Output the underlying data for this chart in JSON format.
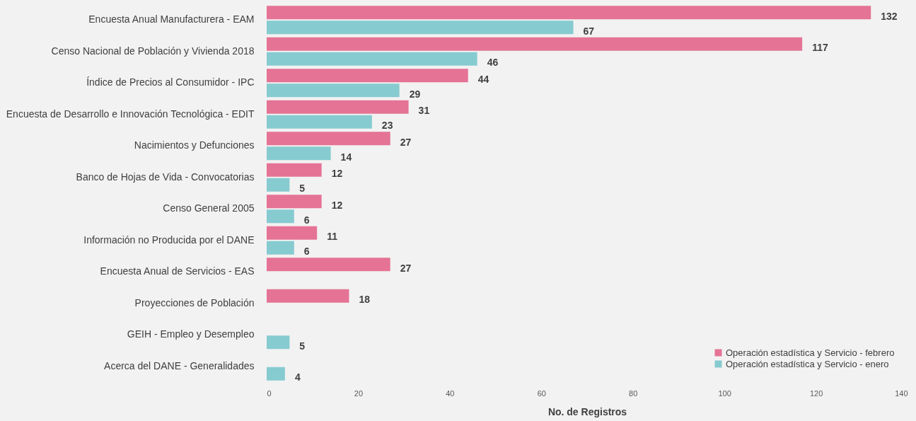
{
  "chart_data": {
    "type": "bar",
    "orientation": "horizontal",
    "xlabel": "No. de Registros",
    "categories": [
      "Encuesta Anual Manufacturera - EAM",
      "Censo Nacional de Población y Vivienda 2018",
      "Índice de Precios al Consumidor - IPC",
      "Encuesta de Desarrollo e Innovación Tecnológica - EDIT",
      "Nacimientos y Defunciones",
      "Banco de Hojas de Vida - Convocatorias",
      "Censo General 2005",
      "Información no Producida por el DANE",
      "Encuesta Anual de Servicios - EAS",
      "Proyecciones de Población",
      "GEIH - Empleo y Desempleo",
      "Acerca del DANE - Generalidades"
    ],
    "series": [
      {
        "name": "Operación estadística y Servicio - febrero",
        "color": "#e57395",
        "values": [
          132,
          117,
          44,
          31,
          27,
          12,
          12,
          11,
          27,
          18,
          null,
          null
        ]
      },
      {
        "name": "Operación estadística y Servicio - enero",
        "color": "#86cbd0",
        "values": [
          67,
          46,
          29,
          23,
          14,
          5,
          6,
          6,
          null,
          null,
          5,
          4
        ]
      }
    ],
    "xlim": [
      0,
      140
    ],
    "xticks": [
      0,
      20,
      40,
      60,
      80,
      100,
      120,
      140
    ],
    "grid": false,
    "legend": "bottom right",
    "data_labels": true
  }
}
